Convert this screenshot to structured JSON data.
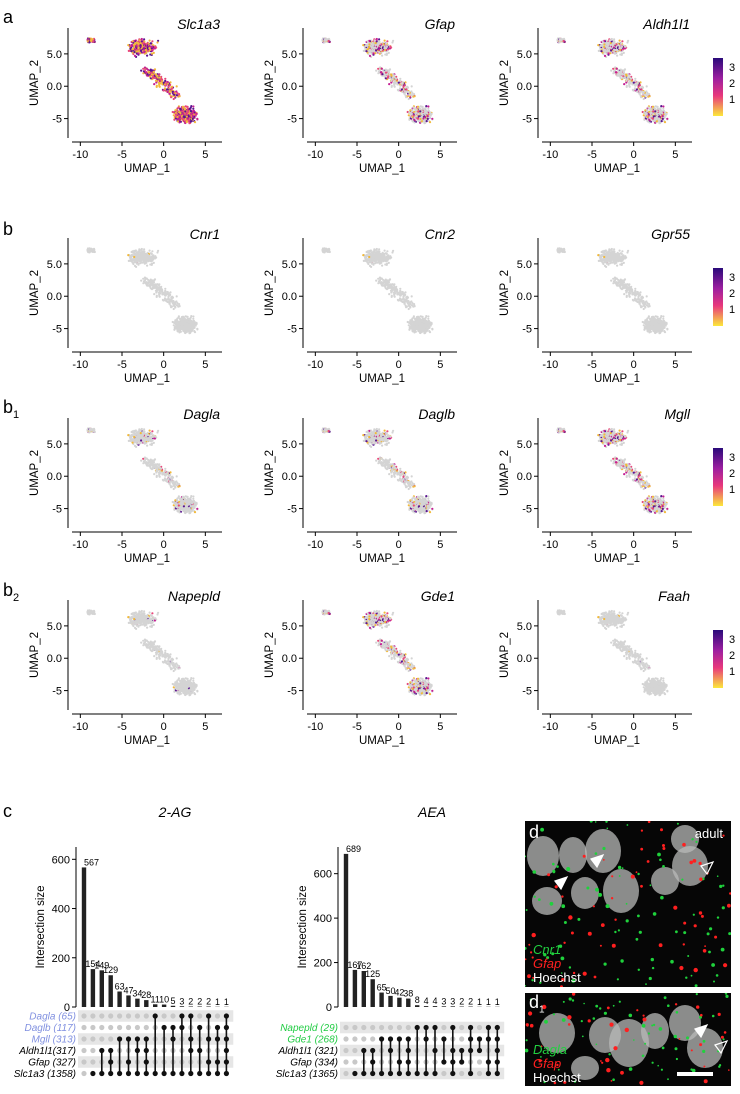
{
  "panels": {
    "a": "a",
    "b": "b",
    "b1": "b",
    "b1_sub": "1",
    "b2": "b",
    "b2_sub": "2",
    "c": "c",
    "d": "d",
    "d1": "d",
    "d1_sub": "1"
  },
  "umap": {
    "xlabel": "UMAP_1",
    "ylabel": "UMAP_2",
    "xticks": [
      "-10",
      "-5",
      "0",
      "5"
    ],
    "yticks": [
      "5.0",
      "0.0",
      "-5"
    ],
    "colorbar_ticks": [
      "3",
      "2",
      "1"
    ],
    "colors": {
      "low": "#f6e43a",
      "mid": "#e0307f",
      "high": "#3b0f8a",
      "background": "#d4d4d4"
    },
    "rows": [
      {
        "genes": [
          "Slc1a3",
          "Gfap",
          "Aldh1l1"
        ],
        "level": [
          0.95,
          0.4,
          0.35
        ]
      },
      {
        "genes": [
          "Cnr1",
          "Cnr2",
          "Gpr55"
        ],
        "level": [
          0.002,
          0.001,
          0.001
        ]
      },
      {
        "genes": [
          "Dagla",
          "Daglb",
          "Mgll"
        ],
        "level": [
          0.12,
          0.18,
          0.35
        ]
      },
      {
        "genes": [
          "Napepld",
          "Gde1",
          "Faah"
        ],
        "level": [
          0.03,
          0.3,
          0.005
        ]
      }
    ]
  },
  "chart_data": [
    {
      "type": "bar",
      "title": "2-AG",
      "ylabel": "Intersection size",
      "ylim": [
        0,
        650
      ],
      "yticks": [
        "0",
        "200",
        "400",
        "600"
      ],
      "values": [
        567,
        154,
        149,
        129,
        63,
        47,
        34,
        28,
        11,
        10,
        5,
        3,
        2,
        2,
        2,
        1,
        1
      ],
      "value_labels": [
        "567",
        "154",
        "149",
        "129",
        "63",
        "47",
        "34",
        "28",
        "11",
        "10",
        "5",
        "3",
        "2",
        "2",
        "2",
        "1",
        "1"
      ],
      "sets": [
        {
          "label": "Dagla (65)",
          "color": "#8090e0"
        },
        {
          "label": "Daglb (117)",
          "color": "#8090e0"
        },
        {
          "label": "Mgll (313)",
          "color": "#8090e0"
        },
        {
          "label": "Aldh1l1(317)",
          "color": "#000000"
        },
        {
          "label": "Gfap (327)",
          "color": "#000000"
        },
        {
          "label": "Slc1a3 (1358)",
          "color": "#000000"
        }
      ],
      "matrix": [
        [
          0,
          0,
          0,
          0,
          0,
          0
        ],
        [
          0,
          0,
          0,
          0,
          0,
          1
        ],
        [
          0,
          0,
          0,
          1,
          0,
          1
        ],
        [
          0,
          0,
          0,
          1,
          1,
          1
        ],
        [
          0,
          0,
          1,
          0,
          0,
          1
        ],
        [
          0,
          0,
          1,
          0,
          1,
          1
        ],
        [
          0,
          0,
          1,
          1,
          0,
          1
        ],
        [
          0,
          0,
          1,
          1,
          1,
          1
        ],
        [
          1,
          0,
          0,
          0,
          0,
          1
        ],
        [
          0,
          1,
          0,
          0,
          0,
          1
        ],
        [
          0,
          1,
          1,
          0,
          0,
          1
        ],
        [
          1,
          1,
          0,
          0,
          0,
          1
        ],
        [
          1,
          0,
          1,
          1,
          0,
          1
        ],
        [
          0,
          1,
          0,
          1,
          0,
          1
        ],
        [
          1,
          0,
          1,
          0,
          1,
          1
        ],
        [
          0,
          1,
          1,
          0,
          1,
          1
        ],
        [
          1,
          1,
          1,
          1,
          1,
          1
        ]
      ]
    },
    {
      "type": "bar",
      "title": "AEA",
      "ylabel": "Intersection size",
      "ylim": [
        0,
        720
      ],
      "yticks": [
        "0",
        "200",
        "400",
        "600"
      ],
      "values": [
        689,
        167,
        162,
        125,
        65,
        50,
        42,
        38,
        8,
        4,
        4,
        3,
        3,
        2,
        2,
        1,
        1,
        1
      ],
      "value_labels": [
        "689",
        "167",
        "162",
        "125",
        "65",
        "50",
        "42",
        "38",
        "8",
        "4",
        "4",
        "3",
        "3",
        "2",
        "2",
        "1",
        "1",
        "1"
      ],
      "sets": [
        {
          "label": "Napepld (29)",
          "color": "#22cc44"
        },
        {
          "label": "Gde1 (268)",
          "color": "#22cc44"
        },
        {
          "label": "Aldh1l1 (321)",
          "color": "#000000"
        },
        {
          "label": "Gfap (334)",
          "color": "#000000"
        },
        {
          "label": "Slc1a3 (1365)",
          "color": "#000000"
        }
      ],
      "matrix": [
        [
          0,
          0,
          0,
          0,
          0
        ],
        [
          0,
          0,
          0,
          0,
          1
        ],
        [
          0,
          0,
          1,
          0,
          1
        ],
        [
          0,
          0,
          1,
          1,
          1
        ],
        [
          0,
          1,
          0,
          0,
          1
        ],
        [
          0,
          1,
          1,
          0,
          1
        ],
        [
          0,
          1,
          0,
          1,
          1
        ],
        [
          0,
          1,
          1,
          1,
          1
        ],
        [
          1,
          0,
          0,
          0,
          1
        ],
        [
          1,
          1,
          0,
          0,
          1
        ],
        [
          1,
          0,
          1,
          0,
          1
        ],
        [
          0,
          1,
          0,
          1,
          0
        ],
        [
          1,
          0,
          1,
          1,
          1
        ],
        [
          0,
          0,
          1,
          1,
          0
        ],
        [
          1,
          1,
          1,
          0,
          1
        ],
        [
          0,
          1,
          1,
          0,
          0
        ],
        [
          1,
          1,
          0,
          1,
          1
        ],
        [
          1,
          1,
          1,
          1,
          1
        ]
      ]
    }
  ],
  "micrographs": [
    {
      "tag": "adult",
      "legend": [
        "Cnr1",
        "Gfap",
        "Hoechst"
      ],
      "legend_colors": [
        "#22d040",
        "#ff2020",
        "#ffffff"
      ]
    },
    {
      "tag": "",
      "legend": [
        "Dagla",
        "Gfap",
        "Hoechst"
      ],
      "legend_colors": [
        "#22d040",
        "#ff2020",
        "#ffffff"
      ]
    }
  ]
}
